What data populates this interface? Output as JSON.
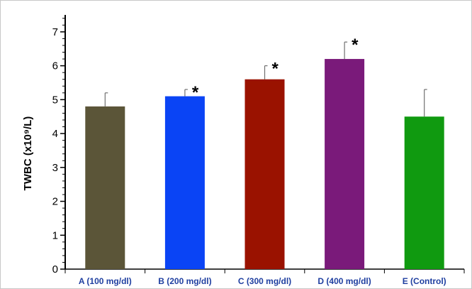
{
  "chart_data": {
    "type": "bar",
    "categories": [
      "A (100 mg/dl)",
      "B (200 mg/dl)",
      "C (300 mg/dl)",
      "D (400 mg/dl)",
      "E (Control)"
    ],
    "values": [
      4.8,
      5.1,
      5.6,
      6.2,
      4.5
    ],
    "error": [
      0.4,
      0.2,
      0.4,
      0.5,
      0.8
    ],
    "significance": [
      "",
      "*",
      "*",
      "*",
      ""
    ],
    "colors": [
      "#5b5538",
      "#0a44f5",
      "#9a1200",
      "#7a1a7a",
      "#109a10"
    ],
    "title": "",
    "xlabel": "",
    "ylabel": "TWBC (x10⁹/L)",
    "ylim": [
      0,
      7.5
    ],
    "yticks": [
      "0",
      "1",
      "2",
      "3",
      "4",
      "5",
      "6",
      "7"
    ],
    "grid": false,
    "legend": "none"
  }
}
